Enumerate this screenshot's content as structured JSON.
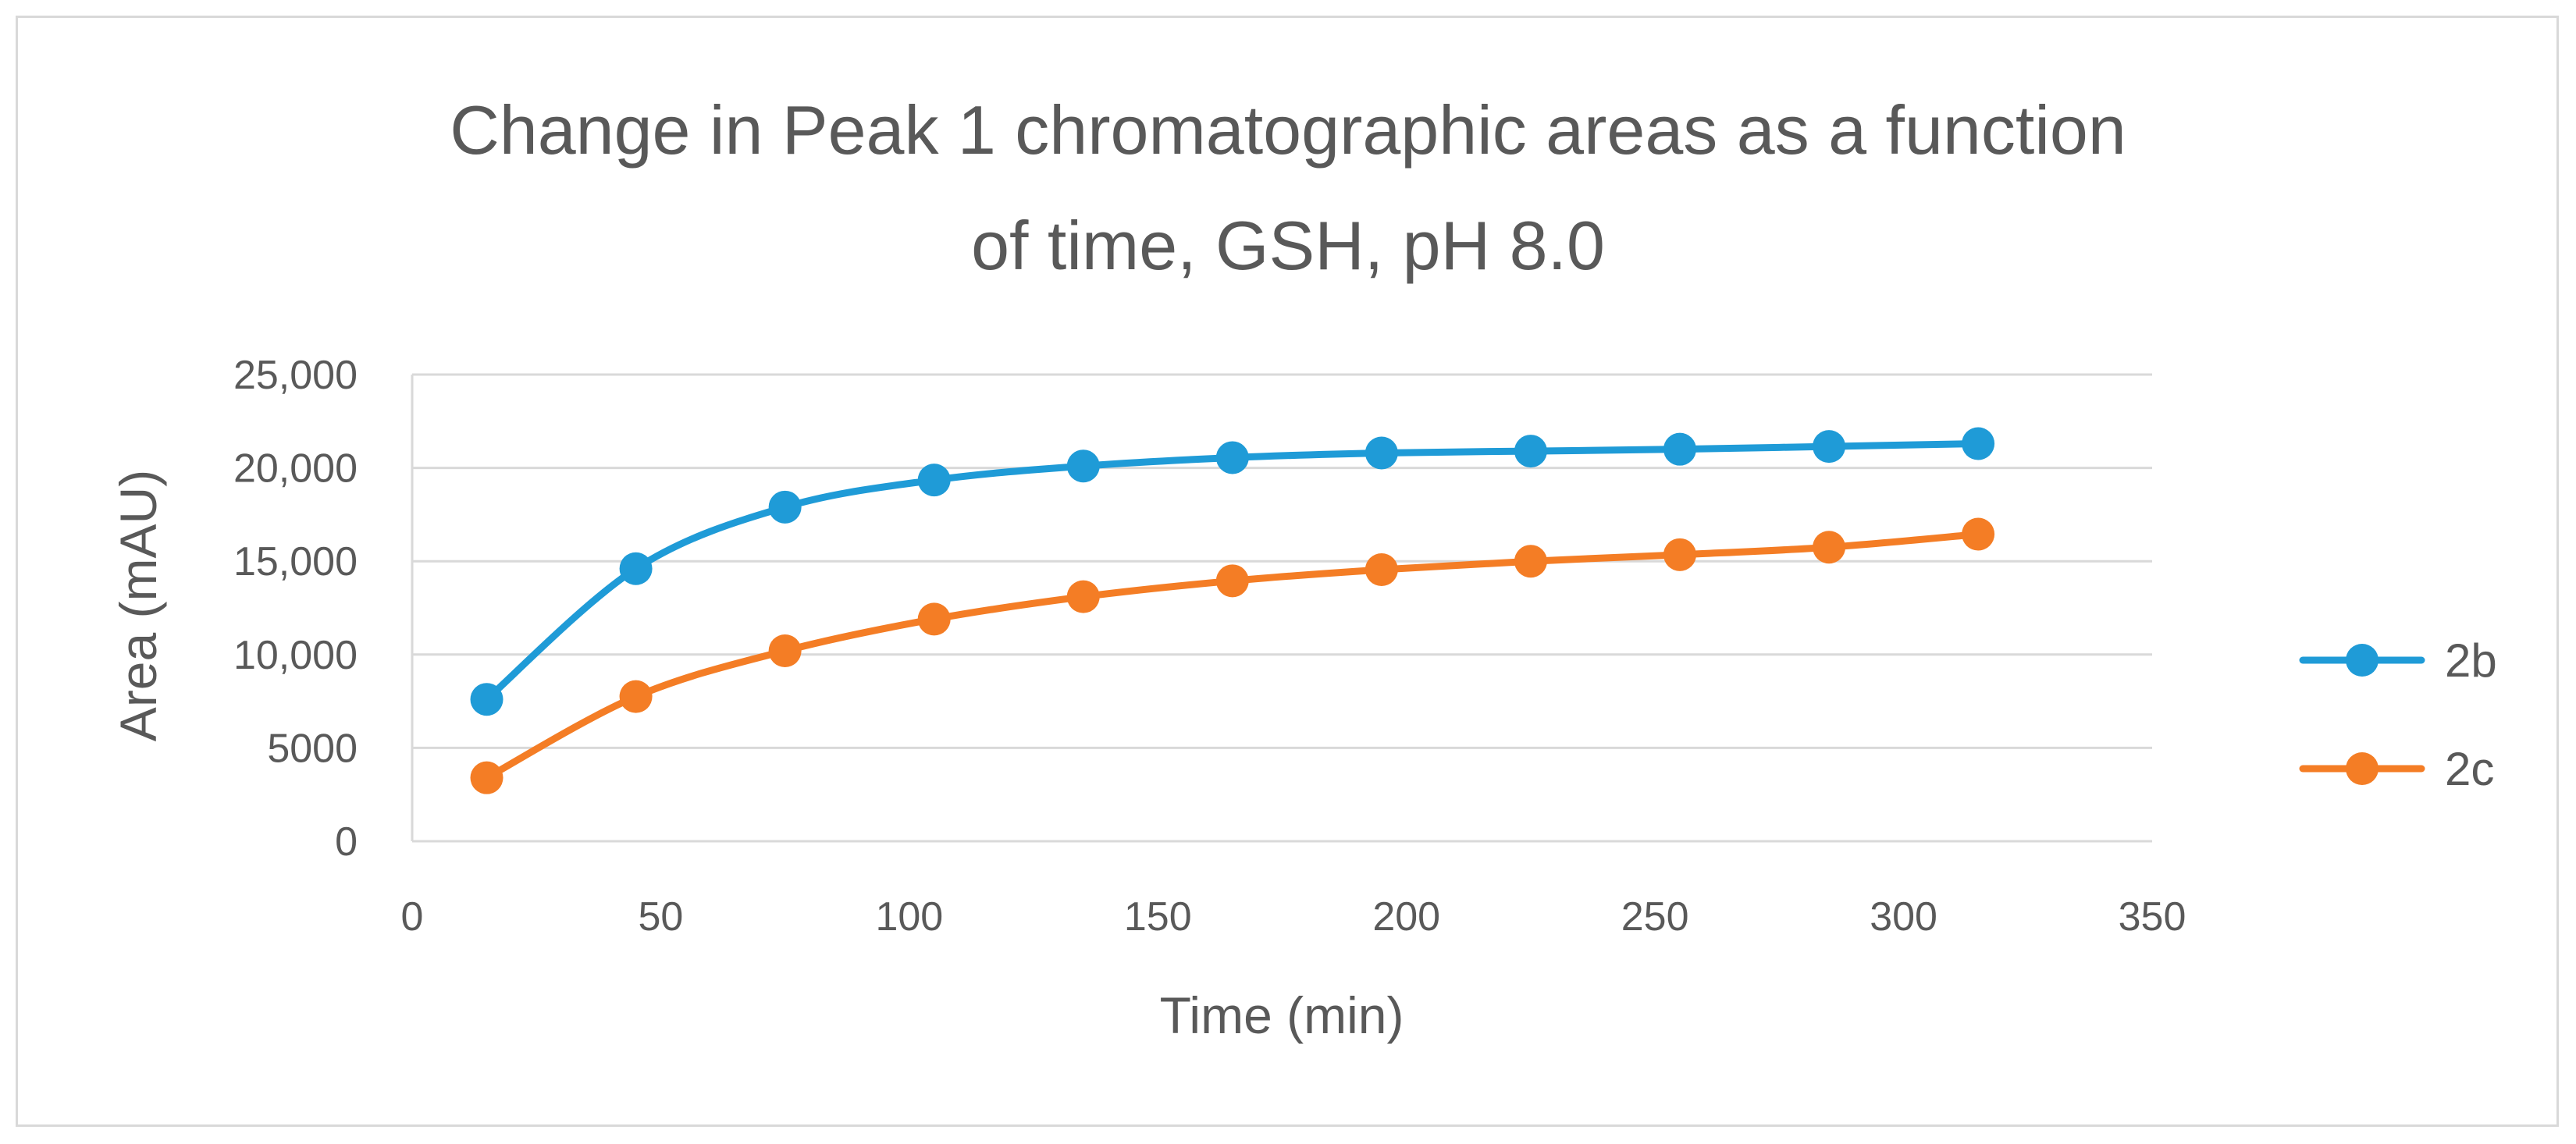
{
  "chart_data": {
    "type": "line",
    "title_lines": [
      "Change in Peak 1 chromatographic areas as a function",
      "of time, GSH, pH 8.0"
    ],
    "xlabel": "Time (min)",
    "ylabel": "Area (mAU)",
    "xlim": [
      0,
      350
    ],
    "ylim": [
      0,
      25000
    ],
    "x_ticks": [
      0,
      50,
      100,
      150,
      200,
      250,
      300,
      350
    ],
    "x_tick_labels": [
      "0",
      "50",
      "100",
      "150",
      "200",
      "250",
      "300",
      "350"
    ],
    "y_ticks": [
      0,
      5000,
      10000,
      15000,
      20000,
      25000
    ],
    "y_tick_labels": [
      "0",
      "5000",
      "10,000",
      "15,000",
      "20,000",
      "25,000"
    ],
    "grid": "horizontal",
    "smooth": true,
    "legend_position": "right",
    "x": [
      15,
      45,
      75,
      105,
      135,
      165,
      195,
      225,
      255,
      285,
      315
    ],
    "series": [
      {
        "name": "2b",
        "color": "#1f9bd7",
        "values": [
          7600,
          14600,
          17900,
          19350,
          20100,
          20550,
          20800,
          20900,
          21000,
          21150,
          21300
        ]
      },
      {
        "name": "2c",
        "color": "#f47d25",
        "values": [
          3400,
          7750,
          10200,
          11900,
          13100,
          13950,
          14550,
          15000,
          15350,
          15750,
          16450
        ]
      }
    ]
  }
}
